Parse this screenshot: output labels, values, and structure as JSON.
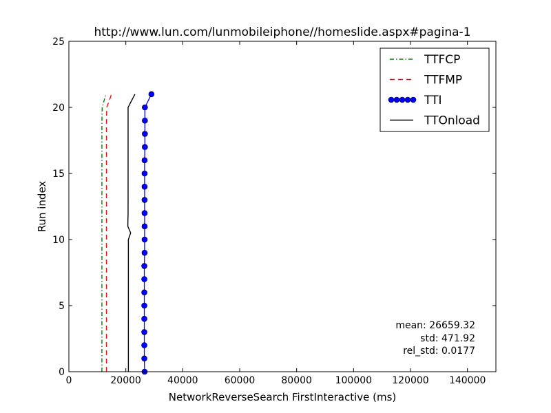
{
  "chart_data": {
    "type": "line",
    "title": "http://www.lun.com/lunmobileiphone//homeslide.aspx#pagina-1",
    "xlabel": "NetworkReverseSearch FirstInteractive (ms)",
    "ylabel": "Run index",
    "xlim": [
      0,
      150000
    ],
    "ylim": [
      0,
      25
    ],
    "x_ticks": [
      0,
      20000,
      40000,
      60000,
      80000,
      100000,
      120000,
      140000
    ],
    "x_tick_labels": [
      "0",
      "20000",
      "40000",
      "60000",
      "80000",
      "100000",
      "120000",
      "140000"
    ],
    "y_ticks": [
      0,
      5,
      10,
      15,
      20,
      25
    ],
    "y_tick_labels": [
      "0",
      "5",
      "10",
      "15",
      "20",
      "25"
    ],
    "grid": false,
    "legend_position": "top-right",
    "series": [
      {
        "name": "TTFCP",
        "color": "#008000",
        "style": "dashdot",
        "marker": "none",
        "y": [
          0,
          1,
          2,
          3,
          4,
          5,
          6,
          7,
          8,
          9,
          10,
          11,
          12,
          13,
          14,
          15,
          16,
          17,
          18,
          19,
          20,
          21
        ],
        "x": [
          11600,
          11600,
          11600,
          11600,
          11600,
          11600,
          11600,
          11600,
          11600,
          11600,
          11600,
          11600,
          11600,
          11600,
          11600,
          11600,
          11600,
          11600,
          11600,
          11600,
          11700,
          13000
        ]
      },
      {
        "name": "TTFMP",
        "color": "#ff0000",
        "style": "dashed",
        "marker": "none",
        "y": [
          0,
          1,
          2,
          3,
          4,
          5,
          6,
          7,
          8,
          9,
          10,
          11,
          12,
          13,
          14,
          15,
          16,
          17,
          18,
          19,
          20,
          21
        ],
        "x": [
          13200,
          13200,
          13200,
          13200,
          13200,
          13200,
          13200,
          13200,
          13200,
          13200,
          13200,
          13200,
          13200,
          13200,
          13200,
          13200,
          13200,
          13200,
          13200,
          13200,
          13300,
          15000
        ]
      },
      {
        "name": "TTI",
        "color": "#0000ff",
        "style": "solid",
        "marker": "circle",
        "y": [
          0,
          1,
          2,
          3,
          4,
          5,
          6,
          7,
          8,
          9,
          10,
          11,
          12,
          13,
          14,
          15,
          16,
          17,
          18,
          19,
          20,
          21
        ],
        "x": [
          26600,
          26500,
          26500,
          26500,
          26500,
          26500,
          26500,
          26500,
          26500,
          26600,
          26600,
          26600,
          26600,
          26600,
          26600,
          26600,
          26600,
          26700,
          26700,
          26700,
          26700,
          29000
        ]
      },
      {
        "name": "TTOnload",
        "color": "#000000",
        "style": "solid",
        "marker": "none",
        "y": [
          0,
          1,
          2,
          3,
          4,
          5,
          6,
          7,
          8,
          9,
          10,
          10.5,
          11,
          12,
          13,
          14,
          15,
          16,
          17,
          18,
          19,
          20,
          21
        ],
        "x": [
          20900,
          20900,
          20900,
          20900,
          20900,
          20900,
          20900,
          20900,
          20900,
          20900,
          20900,
          21700,
          20700,
          20800,
          20800,
          20800,
          20800,
          20800,
          20800,
          20800,
          20800,
          20800,
          23200
        ]
      }
    ],
    "annotation": [
      "mean: 26659.32",
      "std: 471.92",
      "rel_std: 0.0177"
    ]
  }
}
